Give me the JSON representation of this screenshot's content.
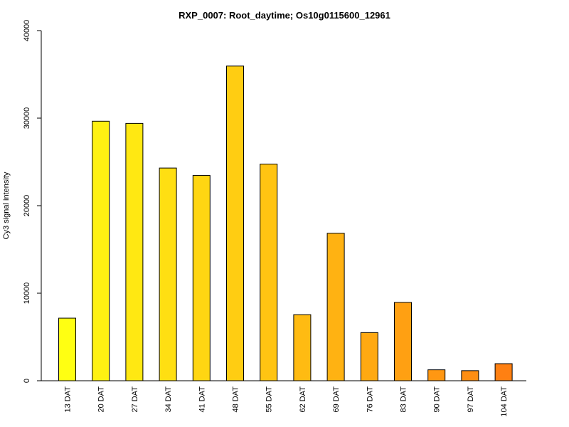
{
  "chart_data": {
    "type": "bar",
    "title": "RXP_0007: Root_daytime; Os10g0115600_12961",
    "xlabel": "",
    "ylabel": "Cy3 signal intensity",
    "ylim": [
      0,
      40000
    ],
    "yticks": [
      0,
      10000,
      20000,
      30000,
      40000
    ],
    "grid": false,
    "legend": "none",
    "categories": [
      "13 DAT",
      "20 DAT",
      "27 DAT",
      "34 DAT",
      "41 DAT",
      "48 DAT",
      "55 DAT",
      "62 DAT",
      "69 DAT",
      "76 DAT",
      "83 DAT",
      "90 DAT",
      "97 DAT",
      "104 DAT"
    ],
    "values": [
      7150,
      29650,
      29400,
      24300,
      23450,
      35950,
      24750,
      7550,
      16850,
      5500,
      8950,
      1250,
      1150,
      1950
    ],
    "colors": [
      "#ffff12",
      "#fff112",
      "#ffe812",
      "#ffdf12",
      "#ffd612",
      "#ffcd12",
      "#ffc412",
      "#ffbb12",
      "#ffb212",
      "#ffa912",
      "#ffa012",
      "#ff9712",
      "#ff8e12",
      "#ff8012"
    ]
  }
}
